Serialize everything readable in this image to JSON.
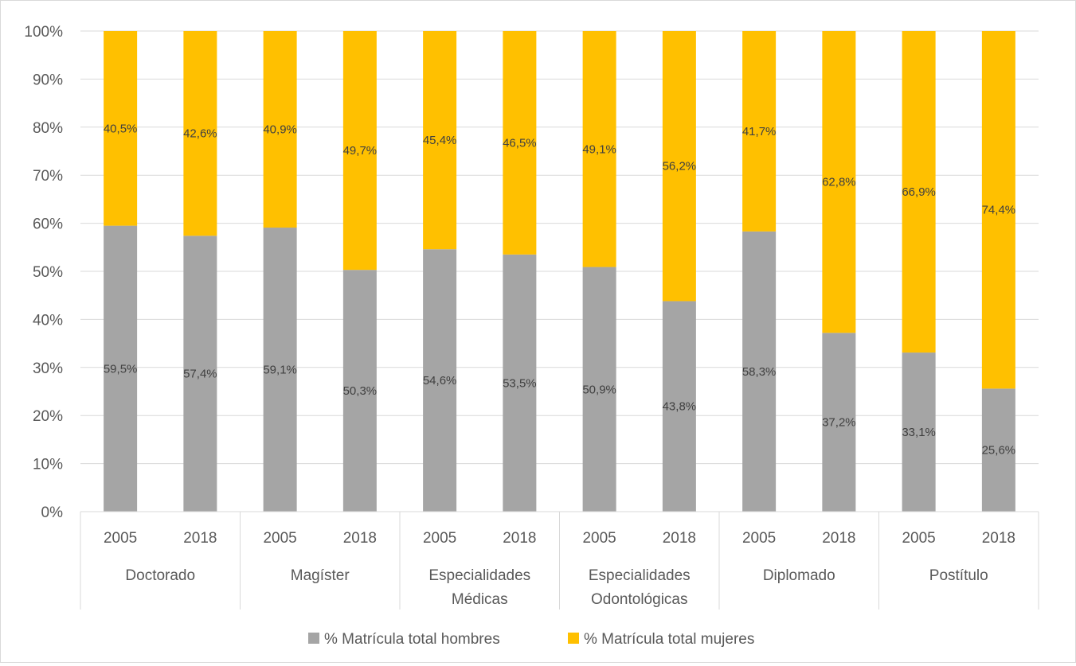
{
  "chart_data": {
    "type": "bar",
    "stacked": true,
    "percent_stacked": true,
    "groups": [
      {
        "label_lines": [
          "Doctorado"
        ],
        "years": [
          "2005",
          "2018"
        ]
      },
      {
        "label_lines": [
          "Magíster"
        ],
        "years": [
          "2005",
          "2018"
        ]
      },
      {
        "label_lines": [
          "Especialidades",
          "Médicas"
        ],
        "years": [
          "2005",
          "2018"
        ]
      },
      {
        "label_lines": [
          "Especialidades",
          "Odontológicas"
        ],
        "years": [
          "2005",
          "2018"
        ]
      },
      {
        "label_lines": [
          "Diplomado"
        ],
        "years": [
          "2005",
          "2018"
        ]
      },
      {
        "label_lines": [
          "Postítulo"
        ],
        "years": [
          "2005",
          "2018"
        ]
      }
    ],
    "categories": [
      "Doctorado 2005",
      "Doctorado 2018",
      "Magíster 2005",
      "Magíster 2018",
      "Especialidades Médicas 2005",
      "Especialidades Médicas 2018",
      "Especialidades Odontológicas 2005",
      "Especialidades Odontológicas 2018",
      "Diplomado 2005",
      "Diplomado 2018",
      "Postítulo 2005",
      "Postítulo 2018"
    ],
    "series": [
      {
        "name": "% Matrícula total hombres",
        "color": "#a5a5a5",
        "values": [
          59.5,
          57.4,
          59.1,
          50.3,
          54.6,
          53.5,
          50.9,
          43.8,
          58.3,
          37.2,
          33.1,
          25.6
        ],
        "labels": [
          "59,5%",
          "57,4%",
          "59,1%",
          "50,3%",
          "54,6%",
          "53,5%",
          "50,9%",
          "43,8%",
          "58,3%",
          "37,2%",
          "33,1%",
          "25,6%"
        ]
      },
      {
        "name": "% Matrícula total mujeres",
        "color": "#ffc000",
        "values": [
          40.5,
          42.6,
          40.9,
          49.7,
          45.4,
          46.5,
          49.1,
          56.2,
          41.7,
          62.8,
          66.9,
          74.4
        ],
        "labels": [
          "40,5%",
          "42,6%",
          "40,9%",
          "49,7%",
          "45,4%",
          "46,5%",
          "49,1%",
          "56,2%",
          "41,7%",
          "62,8%",
          "66,9%",
          "74,4%"
        ]
      }
    ],
    "y_ticks": [
      "0%",
      "10%",
      "20%",
      "30%",
      "40%",
      "50%",
      "60%",
      "70%",
      "80%",
      "90%",
      "100%"
    ],
    "ylim": [
      0,
      100
    ],
    "grid": true,
    "legend_position": "bottom"
  }
}
